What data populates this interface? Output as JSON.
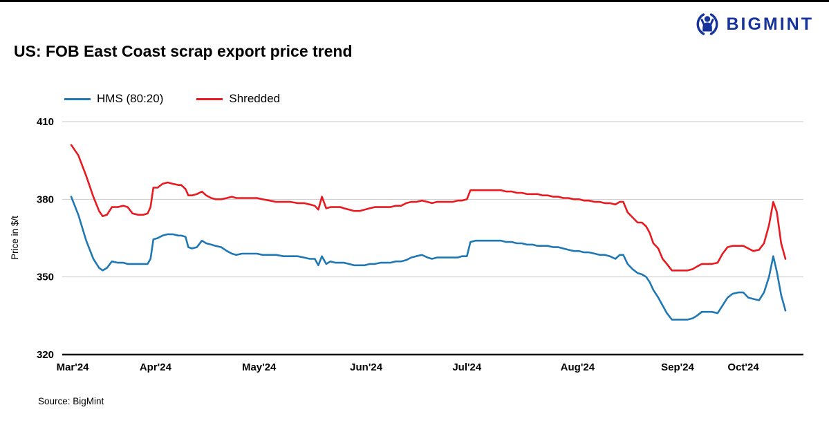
{
  "page": {
    "logo_text": "BIGMINT",
    "logo_icon": "person-figure-icon",
    "title": "US: FOB East Coast scrap export price trend",
    "source": "Source: BigMint"
  },
  "colors": {
    "brand_blue": "#16349c",
    "hms_line": "#1f77b4",
    "shredded_line": "#e8191f",
    "grid": "#c9c9c9",
    "axis": "#000000"
  },
  "chart_data": {
    "type": "line",
    "title": "US: FOB East Coast scrap export price trend",
    "xlabel": "",
    "ylabel": "Price in $/t",
    "ylim": [
      320,
      410
    ],
    "y_ticks": [
      410,
      380,
      350,
      320
    ],
    "grid": "horizontal",
    "legend_position": "top-left",
    "x_unit": "fraction of time axis, Mar 2024 to late Oct 2024",
    "x_ticks": [
      {
        "label": "Mar'24",
        "t": 0.002
      },
      {
        "label": "Apr'24",
        "t": 0.118
      },
      {
        "label": "May'24",
        "t": 0.263
      },
      {
        "label": "Jun'24",
        "t": 0.413
      },
      {
        "label": "Jul'24",
        "t": 0.554
      },
      {
        "label": "Aug'24",
        "t": 0.709
      },
      {
        "label": "Sep'24",
        "t": 0.849
      },
      {
        "label": "Oct'24",
        "t": 0.941
      }
    ],
    "series": [
      {
        "name": "HMS (80:20)",
        "color": "#1f77b4",
        "points": [
          [
            0.0,
            381
          ],
          [
            0.01,
            374
          ],
          [
            0.021,
            364
          ],
          [
            0.031,
            357
          ],
          [
            0.039,
            353.5
          ],
          [
            0.044,
            352.5
          ],
          [
            0.05,
            353.5
          ],
          [
            0.057,
            356
          ],
          [
            0.065,
            355.5
          ],
          [
            0.073,
            355.5
          ],
          [
            0.079,
            355
          ],
          [
            0.086,
            355
          ],
          [
            0.094,
            355
          ],
          [
            0.101,
            355
          ],
          [
            0.107,
            355
          ],
          [
            0.111,
            357
          ],
          [
            0.115,
            364.5
          ],
          [
            0.121,
            365
          ],
          [
            0.128,
            366
          ],
          [
            0.135,
            366.5
          ],
          [
            0.142,
            366.5
          ],
          [
            0.15,
            366
          ],
          [
            0.154,
            366
          ],
          [
            0.16,
            365.5
          ],
          [
            0.164,
            361.5
          ],
          [
            0.169,
            361
          ],
          [
            0.176,
            361.5
          ],
          [
            0.183,
            364
          ],
          [
            0.189,
            363
          ],
          [
            0.196,
            362.5
          ],
          [
            0.202,
            362
          ],
          [
            0.21,
            361.5
          ],
          [
            0.218,
            360
          ],
          [
            0.225,
            359
          ],
          [
            0.231,
            358.5
          ],
          [
            0.239,
            359
          ],
          [
            0.247,
            359
          ],
          [
            0.254,
            359
          ],
          [
            0.26,
            359
          ],
          [
            0.268,
            358.5
          ],
          [
            0.278,
            358.5
          ],
          [
            0.287,
            358.5
          ],
          [
            0.297,
            358
          ],
          [
            0.307,
            358
          ],
          [
            0.317,
            358
          ],
          [
            0.326,
            357.5
          ],
          [
            0.334,
            357
          ],
          [
            0.341,
            357
          ],
          [
            0.346,
            354.5
          ],
          [
            0.351,
            358
          ],
          [
            0.357,
            355
          ],
          [
            0.363,
            356
          ],
          [
            0.37,
            355.5
          ],
          [
            0.377,
            355.5
          ],
          [
            0.382,
            355.5
          ],
          [
            0.389,
            355
          ],
          [
            0.396,
            354.5
          ],
          [
            0.404,
            354.5
          ],
          [
            0.411,
            354.5
          ],
          [
            0.418,
            355
          ],
          [
            0.425,
            355
          ],
          [
            0.433,
            355.5
          ],
          [
            0.44,
            355.5
          ],
          [
            0.447,
            355.5
          ],
          [
            0.454,
            356
          ],
          [
            0.462,
            356
          ],
          [
            0.469,
            356.5
          ],
          [
            0.476,
            357.5
          ],
          [
            0.483,
            358
          ],
          [
            0.491,
            358.5
          ],
          [
            0.499,
            357.5
          ],
          [
            0.505,
            357
          ],
          [
            0.512,
            357.5
          ],
          [
            0.52,
            357.5
          ],
          [
            0.528,
            357.5
          ],
          [
            0.534,
            357.5
          ],
          [
            0.541,
            357.5
          ],
          [
            0.547,
            358
          ],
          [
            0.554,
            358
          ],
          [
            0.559,
            363.5
          ],
          [
            0.566,
            364
          ],
          [
            0.573,
            364
          ],
          [
            0.58,
            364
          ],
          [
            0.588,
            364
          ],
          [
            0.595,
            364
          ],
          [
            0.602,
            364
          ],
          [
            0.609,
            363.5
          ],
          [
            0.617,
            363.5
          ],
          [
            0.624,
            363
          ],
          [
            0.631,
            363
          ],
          [
            0.638,
            362.5
          ],
          [
            0.646,
            362.5
          ],
          [
            0.653,
            362
          ],
          [
            0.66,
            362
          ],
          [
            0.667,
            362
          ],
          [
            0.675,
            361.5
          ],
          [
            0.682,
            361.5
          ],
          [
            0.689,
            361
          ],
          [
            0.696,
            360.5
          ],
          [
            0.704,
            360
          ],
          [
            0.711,
            360
          ],
          [
            0.718,
            359.5
          ],
          [
            0.725,
            359.5
          ],
          [
            0.733,
            359
          ],
          [
            0.74,
            358.5
          ],
          [
            0.747,
            358.5
          ],
          [
            0.754,
            358
          ],
          [
            0.762,
            357
          ],
          [
            0.768,
            358.5
          ],
          [
            0.773,
            358.5
          ],
          [
            0.779,
            355
          ],
          [
            0.786,
            353
          ],
          [
            0.793,
            351.5
          ],
          [
            0.799,
            351
          ],
          [
            0.805,
            350
          ],
          [
            0.81,
            348
          ],
          [
            0.815,
            345
          ],
          [
            0.822,
            342
          ],
          [
            0.828,
            339
          ],
          [
            0.834,
            336
          ],
          [
            0.841,
            333.5
          ],
          [
            0.849,
            333.5
          ],
          [
            0.857,
            333.5
          ],
          [
            0.863,
            333.5
          ],
          [
            0.87,
            334
          ],
          [
            0.876,
            335
          ],
          [
            0.883,
            336.5
          ],
          [
            0.89,
            336.5
          ],
          [
            0.897,
            336.5
          ],
          [
            0.905,
            336
          ],
          [
            0.912,
            339
          ],
          [
            0.919,
            342
          ],
          [
            0.926,
            343.5
          ],
          [
            0.934,
            344
          ],
          [
            0.941,
            344
          ],
          [
            0.948,
            342
          ],
          [
            0.955,
            341.5
          ],
          [
            0.963,
            341
          ],
          [
            0.97,
            344
          ],
          [
            0.977,
            350
          ],
          [
            0.983,
            358
          ],
          [
            0.988,
            352
          ],
          [
            0.994,
            343
          ],
          [
            1.0,
            337
          ]
        ]
      },
      {
        "name": "Shredded",
        "color": "#e8191f",
        "points": [
          [
            0.0,
            401
          ],
          [
            0.01,
            397
          ],
          [
            0.021,
            389
          ],
          [
            0.031,
            381
          ],
          [
            0.039,
            375.5
          ],
          [
            0.044,
            373.5
          ],
          [
            0.05,
            374
          ],
          [
            0.057,
            377
          ],
          [
            0.065,
            377
          ],
          [
            0.073,
            377.5
          ],
          [
            0.079,
            377
          ],
          [
            0.086,
            374.5
          ],
          [
            0.094,
            374
          ],
          [
            0.101,
            374
          ],
          [
            0.107,
            374.5
          ],
          [
            0.111,
            377
          ],
          [
            0.115,
            384.5
          ],
          [
            0.121,
            384.5
          ],
          [
            0.128,
            386
          ],
          [
            0.135,
            386.5
          ],
          [
            0.142,
            386
          ],
          [
            0.15,
            385.5
          ],
          [
            0.154,
            385.5
          ],
          [
            0.16,
            384
          ],
          [
            0.164,
            381.5
          ],
          [
            0.169,
            381.5
          ],
          [
            0.176,
            382
          ],
          [
            0.183,
            383
          ],
          [
            0.189,
            381.5
          ],
          [
            0.196,
            380.5
          ],
          [
            0.202,
            380
          ],
          [
            0.21,
            380
          ],
          [
            0.218,
            380.5
          ],
          [
            0.225,
            381
          ],
          [
            0.231,
            380.5
          ],
          [
            0.239,
            380.5
          ],
          [
            0.247,
            380.5
          ],
          [
            0.254,
            380.5
          ],
          [
            0.26,
            380.5
          ],
          [
            0.268,
            380
          ],
          [
            0.278,
            379.5
          ],
          [
            0.287,
            379
          ],
          [
            0.297,
            379
          ],
          [
            0.307,
            379
          ],
          [
            0.317,
            378.5
          ],
          [
            0.326,
            378.5
          ],
          [
            0.334,
            378
          ],
          [
            0.341,
            377.5
          ],
          [
            0.346,
            376
          ],
          [
            0.351,
            381
          ],
          [
            0.357,
            376.5
          ],
          [
            0.363,
            377
          ],
          [
            0.37,
            377
          ],
          [
            0.377,
            377
          ],
          [
            0.382,
            376.5
          ],
          [
            0.389,
            376
          ],
          [
            0.396,
            375.5
          ],
          [
            0.404,
            375.5
          ],
          [
            0.411,
            376
          ],
          [
            0.418,
            376.5
          ],
          [
            0.425,
            377
          ],
          [
            0.433,
            377
          ],
          [
            0.44,
            377
          ],
          [
            0.447,
            377
          ],
          [
            0.454,
            377.5
          ],
          [
            0.462,
            377.5
          ],
          [
            0.469,
            378.5
          ],
          [
            0.476,
            379
          ],
          [
            0.483,
            379
          ],
          [
            0.491,
            379.5
          ],
          [
            0.499,
            379
          ],
          [
            0.505,
            378.5
          ],
          [
            0.512,
            379
          ],
          [
            0.52,
            379
          ],
          [
            0.528,
            379
          ],
          [
            0.534,
            379
          ],
          [
            0.541,
            379.5
          ],
          [
            0.547,
            379.5
          ],
          [
            0.554,
            380
          ],
          [
            0.559,
            383.5
          ],
          [
            0.566,
            383.5
          ],
          [
            0.573,
            383.5
          ],
          [
            0.58,
            383.5
          ],
          [
            0.588,
            383.5
          ],
          [
            0.595,
            383.5
          ],
          [
            0.602,
            383.5
          ],
          [
            0.609,
            383
          ],
          [
            0.617,
            383
          ],
          [
            0.624,
            382.5
          ],
          [
            0.631,
            382.5
          ],
          [
            0.638,
            382
          ],
          [
            0.646,
            382
          ],
          [
            0.653,
            382
          ],
          [
            0.66,
            381.5
          ],
          [
            0.667,
            381.5
          ],
          [
            0.675,
            381
          ],
          [
            0.682,
            381
          ],
          [
            0.689,
            380.5
          ],
          [
            0.696,
            380.5
          ],
          [
            0.704,
            380
          ],
          [
            0.711,
            380
          ],
          [
            0.718,
            379.5
          ],
          [
            0.725,
            379.5
          ],
          [
            0.733,
            379
          ],
          [
            0.74,
            379
          ],
          [
            0.747,
            378.5
          ],
          [
            0.754,
            378.5
          ],
          [
            0.762,
            378
          ],
          [
            0.768,
            379
          ],
          [
            0.773,
            379
          ],
          [
            0.779,
            375
          ],
          [
            0.786,
            373
          ],
          [
            0.793,
            371
          ],
          [
            0.799,
            371
          ],
          [
            0.805,
            369.5
          ],
          [
            0.81,
            367
          ],
          [
            0.815,
            363
          ],
          [
            0.822,
            361
          ],
          [
            0.828,
            357
          ],
          [
            0.834,
            355
          ],
          [
            0.841,
            352.5
          ],
          [
            0.849,
            352.5
          ],
          [
            0.857,
            352.5
          ],
          [
            0.863,
            352.5
          ],
          [
            0.87,
            353
          ],
          [
            0.876,
            354
          ],
          [
            0.883,
            355
          ],
          [
            0.89,
            355
          ],
          [
            0.897,
            355
          ],
          [
            0.905,
            355.5
          ],
          [
            0.912,
            359
          ],
          [
            0.919,
            361.5
          ],
          [
            0.926,
            362
          ],
          [
            0.934,
            362
          ],
          [
            0.941,
            362
          ],
          [
            0.948,
            361
          ],
          [
            0.955,
            360
          ],
          [
            0.963,
            360.5
          ],
          [
            0.97,
            363
          ],
          [
            0.977,
            370
          ],
          [
            0.983,
            379
          ],
          [
            0.988,
            375
          ],
          [
            0.994,
            363
          ],
          [
            1.0,
            357
          ]
        ]
      }
    ]
  }
}
